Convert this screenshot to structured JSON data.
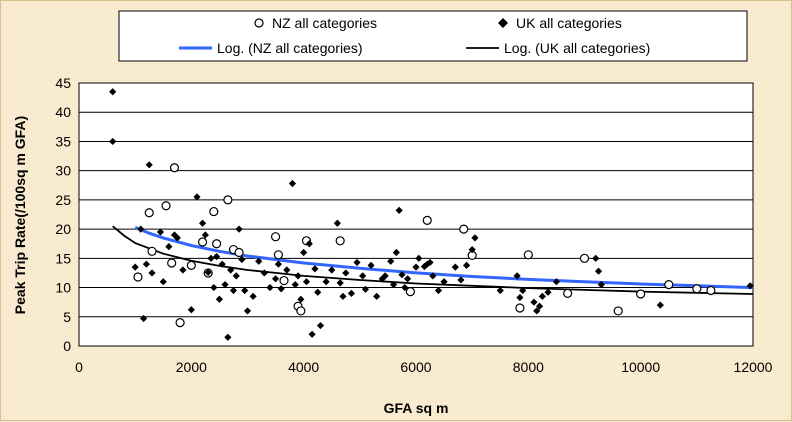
{
  "chart_data": {
    "type": "scatter",
    "title": "",
    "xlabel": "GFA sq m",
    "ylabel": "Peak Trip Rate(/100sq m GFA)",
    "xlim": [
      0,
      12000
    ],
    "ylim": [
      0,
      45
    ],
    "xticks": [
      0,
      2000,
      4000,
      6000,
      8000,
      10000,
      12000
    ],
    "yticks": [
      0,
      5,
      10,
      15,
      20,
      25,
      30,
      35,
      40,
      45
    ],
    "grid": "horizontal",
    "legend_position": "top",
    "legend": [
      "NZ all categories",
      "UK all categories",
      "Log. (NZ all categories)",
      "Log. (UK all categories)"
    ],
    "colors": {
      "nz_marker": "#000000",
      "uk_marker": "#000000",
      "nz_trend": "#3366ff",
      "uk_trend": "#000000",
      "plot_bg": "#ffffff",
      "page_bg": "#f8ebcf"
    },
    "series": [
      {
        "name": "NZ all categories",
        "marker": "circle-open",
        "points": [
          [
            1050,
            11.8
          ],
          [
            1250,
            22.8
          ],
          [
            1300,
            16.2
          ],
          [
            1550,
            24
          ],
          [
            1700,
            30.5
          ],
          [
            1800,
            4
          ],
          [
            1650,
            14.2
          ],
          [
            2000,
            13.8
          ],
          [
            2200,
            17.8
          ],
          [
            2300,
            12.5
          ],
          [
            2400,
            23
          ],
          [
            2450,
            17.5
          ],
          [
            2650,
            25
          ],
          [
            2750,
            16.5
          ],
          [
            2850,
            16
          ],
          [
            3500,
            18.7
          ],
          [
            3550,
            15.6
          ],
          [
            3650,
            11.2
          ],
          [
            3900,
            6.8
          ],
          [
            3950,
            6
          ],
          [
            4050,
            18
          ],
          [
            4650,
            18
          ],
          [
            5900,
            9.3
          ],
          [
            6200,
            21.5
          ],
          [
            6850,
            20
          ],
          [
            7000,
            15.5
          ],
          [
            7850,
            6.5
          ],
          [
            8000,
            15.6
          ],
          [
            8700,
            9
          ],
          [
            9000,
            15
          ],
          [
            9600,
            6
          ],
          [
            10000,
            8.9
          ],
          [
            10500,
            10.5
          ],
          [
            11000,
            9.8
          ],
          [
            11250,
            9.5
          ]
        ]
      },
      {
        "name": "UK all categories",
        "marker": "diamond-filled",
        "points": [
          [
            600,
            43.5
          ],
          [
            600,
            35
          ],
          [
            1000,
            13.5
          ],
          [
            1100,
            20
          ],
          [
            1150,
            4.7
          ],
          [
            1200,
            14
          ],
          [
            1250,
            31
          ],
          [
            1300,
            12.5
          ],
          [
            1450,
            19.5
          ],
          [
            1500,
            11
          ],
          [
            1600,
            17
          ],
          [
            1700,
            19
          ],
          [
            1750,
            18.5
          ],
          [
            1850,
            13
          ],
          [
            2000,
            6.2
          ],
          [
            2100,
            25.5
          ],
          [
            2200,
            21
          ],
          [
            2250,
            19
          ],
          [
            2300,
            12.6
          ],
          [
            2350,
            15
          ],
          [
            2400,
            10
          ],
          [
            2450,
            15.3
          ],
          [
            2500,
            8
          ],
          [
            2550,
            14
          ],
          [
            2600,
            10.5
          ],
          [
            2650,
            1.5
          ],
          [
            2700,
            13
          ],
          [
            2750,
            9.5
          ],
          [
            2800,
            12
          ],
          [
            2850,
            20
          ],
          [
            2900,
            14.8
          ],
          [
            2950,
            9.5
          ],
          [
            3000,
            6
          ],
          [
            3100,
            8.5
          ],
          [
            3200,
            14.5
          ],
          [
            3300,
            12.5
          ],
          [
            3400,
            10
          ],
          [
            3500,
            11.5
          ],
          [
            3550,
            14
          ],
          [
            3600,
            9.8
          ],
          [
            3700,
            13
          ],
          [
            3800,
            27.8
          ],
          [
            3850,
            10.5
          ],
          [
            3900,
            12
          ],
          [
            3950,
            8
          ],
          [
            4000,
            16
          ],
          [
            4050,
            11
          ],
          [
            4100,
            17.5
          ],
          [
            4150,
            2
          ],
          [
            4200,
            13.2
          ],
          [
            4250,
            9.2
          ],
          [
            4300,
            3.5
          ],
          [
            4400,
            11
          ],
          [
            4500,
            13
          ],
          [
            4600,
            21
          ],
          [
            4650,
            10.8
          ],
          [
            4700,
            8.5
          ],
          [
            4750,
            12.5
          ],
          [
            4850,
            9
          ],
          [
            4950,
            14.3
          ],
          [
            5050,
            12
          ],
          [
            5100,
            9.7
          ],
          [
            5200,
            13.8
          ],
          [
            5300,
            8.5
          ],
          [
            5400,
            11.5
          ],
          [
            5450,
            12
          ],
          [
            5550,
            14.5
          ],
          [
            5600,
            10.5
          ],
          [
            5650,
            16
          ],
          [
            5700,
            23.2
          ],
          [
            5750,
            12.2
          ],
          [
            5800,
            10
          ],
          [
            5850,
            11.5
          ],
          [
            6000,
            13.5
          ],
          [
            6050,
            15
          ],
          [
            6150,
            13.6
          ],
          [
            6200,
            14
          ],
          [
            6250,
            14.3
          ],
          [
            6300,
            12
          ],
          [
            6400,
            9.5
          ],
          [
            6500,
            11
          ],
          [
            6700,
            13.5
          ],
          [
            6800,
            11.3
          ],
          [
            6900,
            13.8
          ],
          [
            7000,
            16.5
          ],
          [
            7050,
            18.5
          ],
          [
            7500,
            9.5
          ],
          [
            7800,
            12
          ],
          [
            7850,
            8.3
          ],
          [
            7900,
            9.5
          ],
          [
            8100,
            7.5
          ],
          [
            8150,
            6
          ],
          [
            8200,
            6.8
          ],
          [
            8250,
            8.5
          ],
          [
            8350,
            9.2
          ],
          [
            8500,
            11
          ],
          [
            9200,
            15
          ],
          [
            9250,
            12.8
          ],
          [
            9300,
            10.5
          ],
          [
            10350,
            7
          ],
          [
            11950,
            10.3
          ]
        ]
      }
    ],
    "trendlines": [
      {
        "name": "Log. (NZ all categories)",
        "points": [
          [
            1000,
            20.3
          ],
          [
            1250,
            19.3
          ],
          [
            1500,
            18.5
          ],
          [
            2000,
            17.2
          ],
          [
            2500,
            16.2
          ],
          [
            3000,
            15.4
          ],
          [
            3500,
            14.8
          ],
          [
            4000,
            14.2
          ],
          [
            5000,
            13.3
          ],
          [
            6000,
            12.5
          ],
          [
            7000,
            11.9
          ],
          [
            8000,
            11.4
          ],
          [
            9000,
            11
          ],
          [
            10000,
            10.6
          ],
          [
            11000,
            10.3
          ],
          [
            12000,
            10
          ]
        ]
      },
      {
        "name": "Log. (UK all categories)",
        "points": [
          [
            600,
            20.5
          ],
          [
            800,
            18.9
          ],
          [
            1000,
            17.6
          ],
          [
            1500,
            15.8
          ],
          [
            2000,
            14.6
          ],
          [
            2500,
            13.7
          ],
          [
            3000,
            13
          ],
          [
            3500,
            12.5
          ],
          [
            4000,
            12
          ],
          [
            5000,
            11.3
          ],
          [
            6000,
            10.7
          ],
          [
            7000,
            10.3
          ],
          [
            8000,
            9.9
          ],
          [
            9000,
            9.6
          ],
          [
            10000,
            9.3
          ],
          [
            11000,
            9.1
          ],
          [
            12000,
            8.9
          ]
        ]
      }
    ]
  }
}
